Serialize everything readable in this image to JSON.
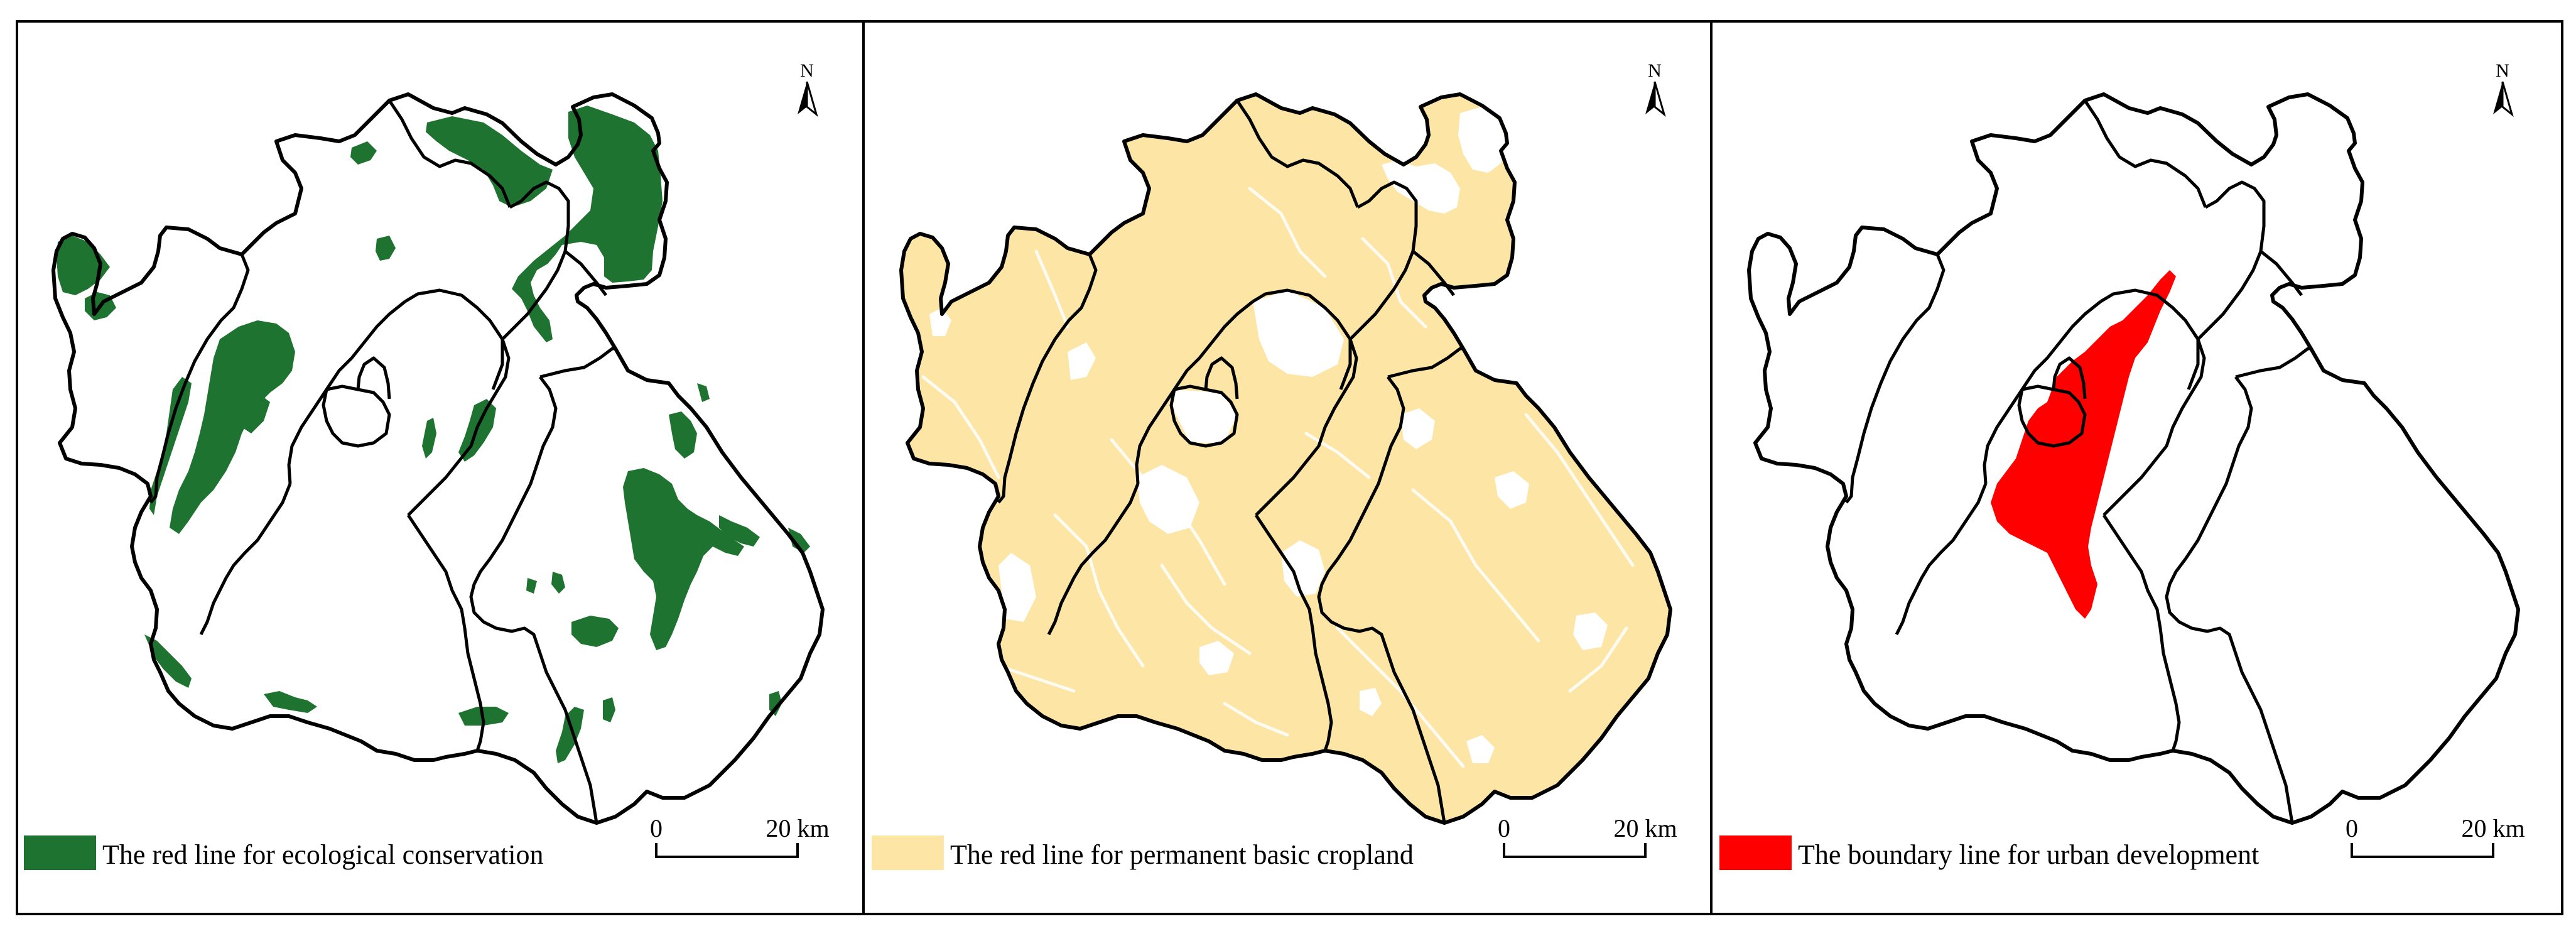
{
  "colors": {
    "ecological": "#1f7330",
    "cropland": "#fde5a6",
    "urban": "#ff0000",
    "outline": "#000000"
  },
  "panels": [
    {
      "id": "ecological",
      "north_label": "N",
      "legend_label": "The red line for ecological conservation",
      "scale_start": "0",
      "scale_end": "20 km"
    },
    {
      "id": "cropland",
      "north_label": "N",
      "legend_label": "The red line for permanent basic cropland",
      "scale_start": "0",
      "scale_end": "20 km"
    },
    {
      "id": "urban",
      "north_label": "N",
      "legend_label": "The boundary line for urban development",
      "scale_start": "0",
      "scale_end": "20 km"
    }
  ]
}
